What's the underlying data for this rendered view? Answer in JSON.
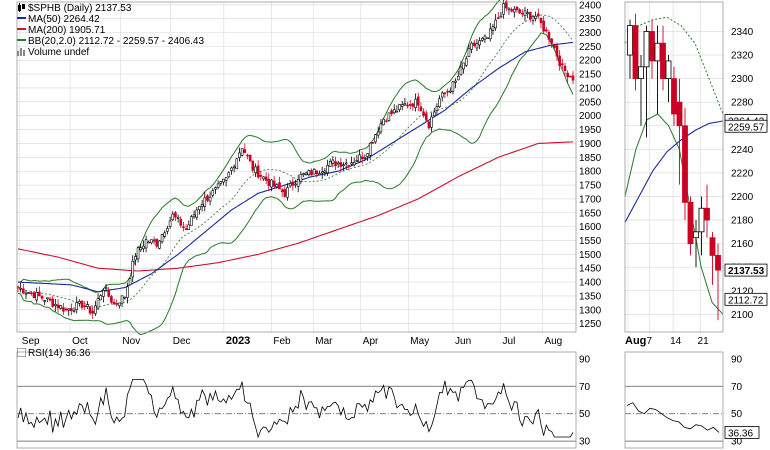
{
  "colors": {
    "up": "#000000",
    "down": "#cc0022",
    "ma50": "#1a2a9a",
    "ma200": "#cc1133",
    "bb": "#2a7a2a",
    "bb_mid": "#2a7a2a",
    "rsi": "#000000",
    "grid": "#d8d8d8",
    "value_tag": "#000000"
  },
  "legend": {
    "title": "$SPHB (Daily) 2137.53",
    "ma50": "MA(50) 2264.42",
    "ma200": "MA(200) 1905.71",
    "bb": "BB(20,2.0) 2112.72 - 2259.57 - 2406.43",
    "volume": "Volume undef"
  },
  "rsi_legend": "RSI(14) 36.36",
  "chart_data": [
    {
      "type": "candlestick",
      "panel": "main",
      "title": "$SPHB (Daily)",
      "ylim": [
        1220,
        2410
      ],
      "y_ticks": [
        1250,
        1300,
        1350,
        1400,
        1450,
        1500,
        1550,
        1600,
        1650,
        1700,
        1750,
        1800,
        1850,
        1900,
        1950,
        2000,
        2050,
        2100,
        2150,
        2200,
        2250,
        2300,
        2350,
        2400
      ],
      "x_labels": [
        "Sep",
        "Oct",
        "Nov",
        "Dec",
        "2023",
        "Feb",
        "Mar",
        "Apr",
        "May",
        "Jun",
        "Jul",
        "Aug"
      ],
      "series_anchors": {
        "close": [
          [
            0,
            1380
          ],
          [
            10,
            1340
          ],
          [
            18,
            1300
          ],
          [
            24,
            1320
          ],
          [
            28,
            1290
          ],
          [
            32,
            1380
          ],
          [
            36,
            1320
          ],
          [
            40,
            1350
          ],
          [
            44,
            1500
          ],
          [
            48,
            1550
          ],
          [
            52,
            1540
          ],
          [
            58,
            1640
          ],
          [
            63,
            1590
          ],
          [
            68,
            1680
          ],
          [
            74,
            1730
          ],
          [
            78,
            1770
          ],
          [
            84,
            1890
          ],
          [
            88,
            1810
          ],
          [
            94,
            1760
          ],
          [
            100,
            1720
          ],
          [
            105,
            1780
          ],
          [
            112,
            1800
          ],
          [
            118,
            1830
          ],
          [
            124,
            1830
          ],
          [
            130,
            1860
          ],
          [
            137,
            1990
          ],
          [
            145,
            2040
          ],
          [
            150,
            2050
          ],
          [
            154,
            1970
          ],
          [
            158,
            2060
          ],
          [
            164,
            2120
          ],
          [
            170,
            2250
          ],
          [
            176,
            2280
          ],
          [
            182,
            2390
          ],
          [
            188,
            2370
          ],
          [
            194,
            2360
          ],
          [
            200,
            2270
          ],
          [
            204,
            2170
          ],
          [
            208,
            2137.53
          ]
        ],
        "ma50": [
          [
            0,
            1400
          ],
          [
            20,
            1390
          ],
          [
            30,
            1365
          ],
          [
            40,
            1380
          ],
          [
            50,
            1430
          ],
          [
            60,
            1500
          ],
          [
            70,
            1580
          ],
          [
            80,
            1660
          ],
          [
            90,
            1720
          ],
          [
            100,
            1750
          ],
          [
            110,
            1780
          ],
          [
            120,
            1800
          ],
          [
            130,
            1840
          ],
          [
            140,
            1900
          ],
          [
            150,
            1960
          ],
          [
            160,
            2020
          ],
          [
            170,
            2100
          ],
          [
            180,
            2170
          ],
          [
            190,
            2230
          ],
          [
            200,
            2255
          ],
          [
            208,
            2264.42
          ]
        ],
        "ma200": [
          [
            0,
            1520
          ],
          [
            15,
            1490
          ],
          [
            30,
            1450
          ],
          [
            45,
            1440
          ],
          [
            60,
            1450
          ],
          [
            75,
            1470
          ],
          [
            90,
            1500
          ],
          [
            105,
            1540
          ],
          [
            120,
            1590
          ],
          [
            135,
            1640
          ],
          [
            150,
            1700
          ],
          [
            165,
            1780
          ],
          [
            180,
            1850
          ],
          [
            195,
            1900
          ],
          [
            208,
            1905.71
          ]
        ]
      },
      "bb_latest": {
        "lower": 2112.72,
        "middle": 2259.57,
        "upper": 2406.43
      },
      "ma50_latest": 2264.42,
      "ma200_latest": 1905.71,
      "last_close": 2137.53
    },
    {
      "type": "candlestick",
      "panel": "zoom",
      "ylim": [
        2085,
        2365
      ],
      "y_ticks": [
        2100,
        2120,
        2140,
        2160,
        2180,
        2200,
        2220,
        2240,
        2260,
        2280,
        2300,
        2320,
        2340
      ],
      "x_labels": [
        "Aug",
        "7",
        "14",
        "21"
      ],
      "candles": [
        {
          "o": 2320,
          "h": 2350,
          "l": 2300,
          "c": 2345
        },
        {
          "o": 2345,
          "h": 2355,
          "l": 2290,
          "c": 2300
        },
        {
          "o": 2300,
          "h": 2320,
          "l": 2260,
          "c": 2310
        },
        {
          "o": 2310,
          "h": 2345,
          "l": 2250,
          "c": 2340
        },
        {
          "o": 2340,
          "h": 2350,
          "l": 2300,
          "c": 2315
        },
        {
          "o": 2315,
          "h": 2345,
          "l": 2270,
          "c": 2330
        },
        {
          "o": 2330,
          "h": 2345,
          "l": 2290,
          "c": 2300
        },
        {
          "o": 2300,
          "h": 2320,
          "l": 2280,
          "c": 2315
        },
        {
          "o": 2300,
          "h": 2310,
          "l": 2260,
          "c": 2270
        },
        {
          "o": 2280,
          "h": 2300,
          "l": 2210,
          "c": 2260
        },
        {
          "o": 2260,
          "h": 2275,
          "l": 2180,
          "c": 2195
        },
        {
          "o": 2195,
          "h": 2200,
          "l": 2150,
          "c": 2160
        },
        {
          "o": 2165,
          "h": 2180,
          "l": 2140,
          "c": 2170
        },
        {
          "o": 2170,
          "h": 2200,
          "l": 2150,
          "c": 2190
        },
        {
          "o": 2190,
          "h": 2210,
          "l": 2165,
          "c": 2180
        },
        {
          "o": 2165,
          "h": 2170,
          "l": 2125,
          "c": 2150
        },
        {
          "o": 2150,
          "h": 2160,
          "l": 2095,
          "c": 2137.53
        }
      ],
      "value_tags": [
        {
          "label": "2264.42",
          "value": 2264.42
        },
        {
          "label": "2259.57",
          "value": 2259.57
        },
        {
          "label": "2137.53",
          "value": 2137.53,
          "bold": true
        },
        {
          "label": "2112.72",
          "value": 2112.72
        }
      ]
    },
    {
      "type": "line",
      "panel": "rsi",
      "title": "RSI(14) 36.36",
      "ylim": [
        25,
        95
      ],
      "y_ticks": [
        30,
        50,
        70,
        90
      ],
      "reference_lines": [
        30,
        50,
        70
      ],
      "last_value": 36.36,
      "value_tag": "36.36"
    }
  ]
}
